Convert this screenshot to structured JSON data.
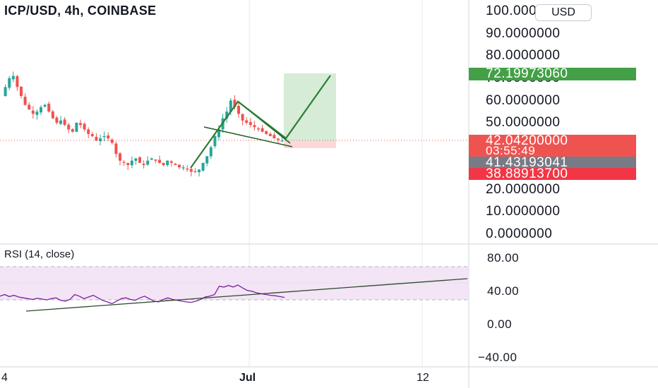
{
  "header": {
    "title": "ICP/USD, 4h, COINBASE",
    "currency_button": "USD"
  },
  "price_axis": {
    "labels": [
      "100.0000000",
      "90.0000000",
      "80.0000000",
      "70.0000000",
      "60.0000000",
      "50.0000000",
      "20.0000000",
      "10.0000000",
      "0.0000000"
    ]
  },
  "price_badges": {
    "target": {
      "value": "72.19973060",
      "color": "#43a047"
    },
    "current": {
      "value": "42.04200000",
      "countdown": "03:55:49",
      "color": "#ef5350"
    },
    "reference": {
      "value": "41.43193041",
      "color": "#787b86"
    },
    "stop": {
      "value": "38.88913700",
      "color": "#f23645"
    }
  },
  "rsi": {
    "title": "RSI (14, close)",
    "axis_labels": [
      "80.00",
      "40.00",
      "0.00",
      "−40.00"
    ],
    "band_upper": 70,
    "band_lower": 30,
    "line_color": "#7b1fa2",
    "band_color": "#f3e5f5"
  },
  "time_axis": {
    "labels": [
      "4",
      "Jul",
      "12"
    ]
  },
  "chart_data": {
    "type": "candlestick",
    "symbol": "ICP/USD",
    "interval": "4h",
    "exchange": "COINBASE",
    "ylim": [
      0,
      100
    ],
    "up_color": "#26a69a",
    "down_color": "#ef5350",
    "close_path": [
      62,
      66,
      70,
      71,
      66,
      62,
      58,
      56,
      54,
      55,
      57,
      58,
      55,
      52,
      50,
      51,
      49,
      47,
      46,
      50,
      49,
      47,
      45,
      44,
      42,
      43,
      44,
      43,
      41,
      36,
      33,
      32,
      31,
      33,
      34,
      32,
      31,
      33,
      34,
      33,
      32,
      31,
      33,
      32,
      31,
      30,
      30,
      29,
      28,
      28,
      29,
      32,
      35,
      39,
      44,
      47,
      52,
      55,
      60,
      57,
      54,
      51,
      50,
      49,
      48,
      47,
      46,
      45,
      44,
      43,
      42.3,
      42.04
    ],
    "position": {
      "target": 72.1997306,
      "entry": 42.042,
      "stop": 38.889137
    },
    "rsi_values": [
      48,
      52,
      47,
      50,
      46,
      44,
      42,
      40,
      43,
      41,
      39,
      42,
      44,
      38,
      36,
      40,
      52,
      48,
      42,
      46,
      50,
      44,
      38,
      34,
      30,
      36,
      42,
      44,
      40,
      38,
      44,
      48,
      42,
      36,
      34,
      40,
      44,
      40,
      38,
      36,
      34,
      33,
      36,
      40,
      46,
      48,
      52,
      72,
      70,
      74,
      70,
      75,
      68,
      62,
      60,
      56,
      54,
      52,
      50,
      49,
      47,
      45
    ]
  }
}
